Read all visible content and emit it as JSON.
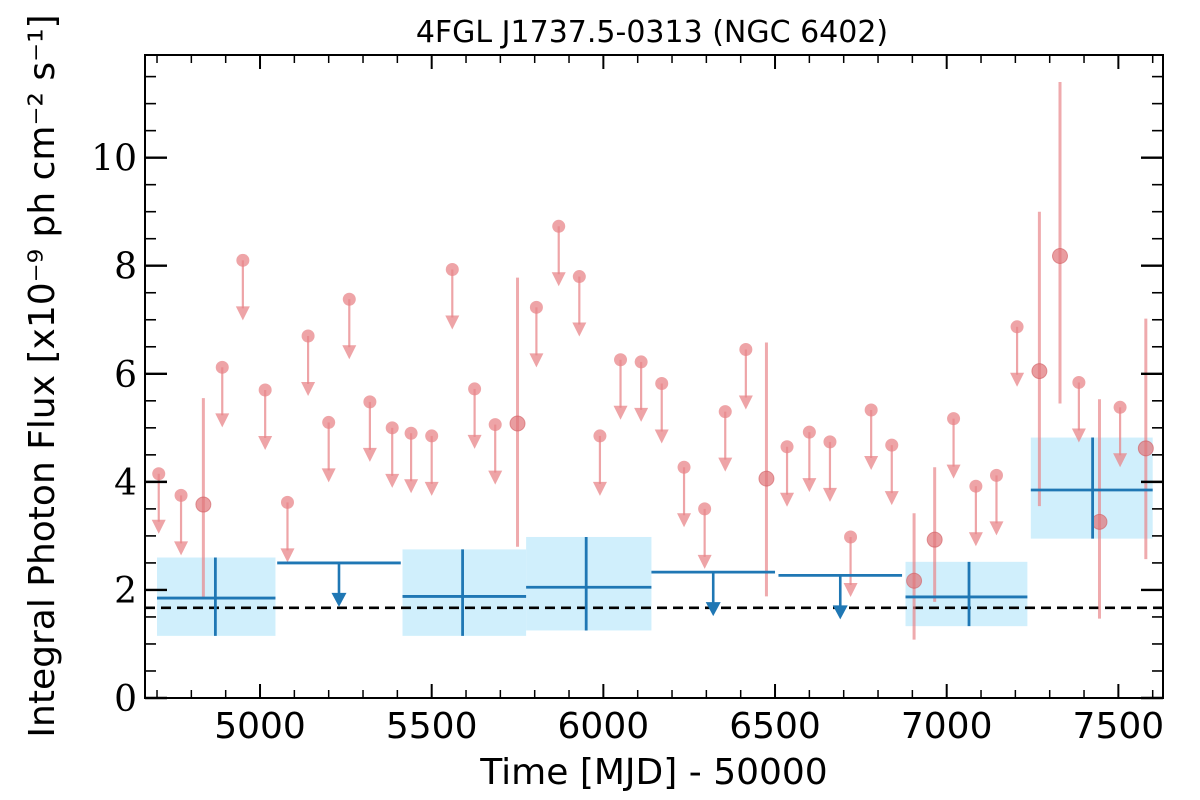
{
  "chart_data": {
    "type": "scatter",
    "title": "4FGL J1737.5-0313 (NGC 6402)",
    "xlabel": "Time [MJD] - 50000",
    "ylabel": "Integral Photon Flux [x10⁻⁹ ph cm⁻² s⁻¹]",
    "xlim": [
      4665,
      7630
    ],
    "ylim": [
      0,
      11.9
    ],
    "xticks": [
      5000,
      5500,
      6000,
      6500,
      7000,
      7500
    ],
    "yticks": [
      0,
      2,
      4,
      6,
      8,
      10
    ],
    "grid": false,
    "reference_line": {
      "y": 1.67,
      "style": "dashed",
      "color": "#000000"
    },
    "colors": {
      "short_bins": "#e8868a",
      "long_bins": "#1f77b4",
      "long_band": "#cdeefc"
    },
    "series": [
      {
        "color": "#e8868a",
        "upper_limits": [
          [
            4705,
            4.15
          ],
          [
            4770,
            3.75
          ],
          [
            4890,
            6.12
          ],
          [
            4950,
            8.1
          ],
          [
            5015,
            5.7
          ],
          [
            5080,
            3.62
          ],
          [
            5140,
            6.7
          ],
          [
            5200,
            5.1
          ],
          [
            5260,
            7.38
          ],
          [
            5320,
            5.48
          ],
          [
            5385,
            5.0
          ],
          [
            5440,
            4.9
          ],
          [
            5500,
            4.85
          ],
          [
            5560,
            7.93
          ],
          [
            5625,
            5.72
          ],
          [
            5685,
            5.06
          ],
          [
            5805,
            7.23
          ],
          [
            5870,
            8.73
          ],
          [
            5930,
            7.8
          ],
          [
            5990,
            4.85
          ],
          [
            6050,
            6.26
          ],
          [
            6110,
            6.22
          ],
          [
            6170,
            5.82
          ],
          [
            6235,
            4.27
          ],
          [
            6295,
            3.5
          ],
          [
            6355,
            5.3
          ],
          [
            6415,
            6.45
          ],
          [
            6535,
            4.65
          ],
          [
            6600,
            4.92
          ],
          [
            6660,
            4.74
          ],
          [
            6720,
            2.98
          ],
          [
            6780,
            5.33
          ],
          [
            6840,
            4.68
          ],
          [
            7020,
            5.17
          ],
          [
            7085,
            3.92
          ],
          [
            7145,
            4.12
          ],
          [
            7205,
            6.87
          ],
          [
            7385,
            5.84
          ],
          [
            7505,
            5.38
          ]
        ],
        "detections": [
          [
            4835,
            3.58,
            1.85,
            5.55
          ],
          [
            5750,
            5.08,
            2.8,
            7.78
          ],
          [
            6475,
            4.06,
            1.88,
            6.58
          ],
          [
            6905,
            2.17,
            1.08,
            3.42
          ],
          [
            6965,
            2.93,
            1.78,
            4.27
          ],
          [
            7270,
            6.05,
            3.55,
            9.0
          ],
          [
            7330,
            8.18,
            5.45,
            11.4
          ],
          [
            7445,
            3.26,
            1.47,
            5.53
          ],
          [
            7580,
            4.62,
            2.57,
            7.02
          ]
        ]
      },
      {
        "color": "#1f77b4",
        "detections": [
          [
            4870,
            4700,
            5045,
            1.85,
            1.15,
            2.6
          ],
          [
            5590,
            5415,
            5775,
            1.88,
            1.15,
            2.75
          ],
          [
            5950,
            5775,
            6140,
            2.05,
            1.25,
            2.98
          ],
          [
            7065,
            6880,
            7235,
            1.87,
            1.33,
            2.52
          ],
          [
            7425,
            7245,
            7600,
            3.85,
            2.95,
            4.82
          ]
        ],
        "upper_limits": [
          [
            5050,
            5410,
            2.5
          ],
          [
            6140,
            6500,
            2.33
          ],
          [
            6510,
            6870,
            2.27
          ]
        ]
      }
    ]
  }
}
